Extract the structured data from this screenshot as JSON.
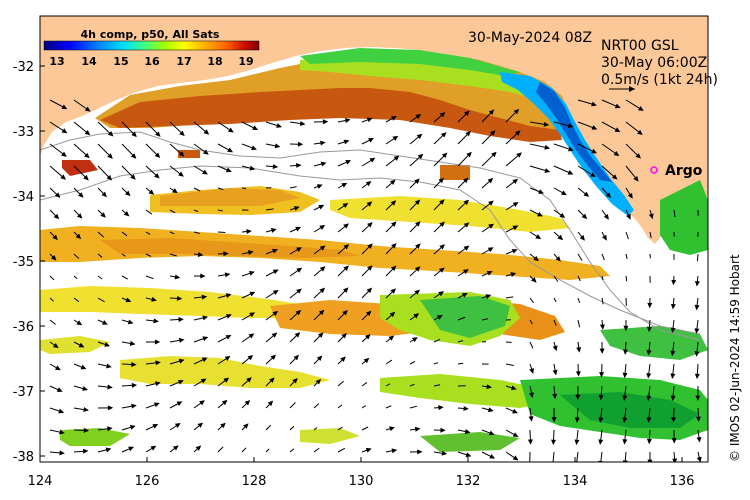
{
  "map": {
    "timestamp": "30-May-2024 08Z",
    "current_product": {
      "line1": "NRT00 GSL",
      "line2": "30-May 06:00Z",
      "scale_label": "0.5m/s (1kt 24h)"
    },
    "legend": {
      "title": "4h comp, p50, All Sats",
      "ticks": [
        "13",
        "14",
        "15",
        "16",
        "17",
        "18",
        "19"
      ],
      "colormap": [
        "#00007f",
        "#0000ff",
        "#0080ff",
        "#00e0ff",
        "#40ff80",
        "#a0ff00",
        "#ffff00",
        "#ffb000",
        "#ff6000",
        "#d01000",
        "#800000"
      ]
    },
    "marker": {
      "label": "Argo",
      "color": "#ff00ff"
    },
    "credit": "© IMOS 02-Jun-2024 14:59 Hobart",
    "axes": {
      "x_ticks": [
        "124",
        "126",
        "128",
        "130",
        "132",
        "134",
        "136"
      ],
      "y_ticks": [
        "-32",
        "-33",
        "-34",
        "-35",
        "-36",
        "-37",
        "-38"
      ]
    },
    "colors": {
      "land": "#fcc898",
      "ocean": "#ffffff",
      "frame": "#000000",
      "contour": "#999999"
    }
  }
}
